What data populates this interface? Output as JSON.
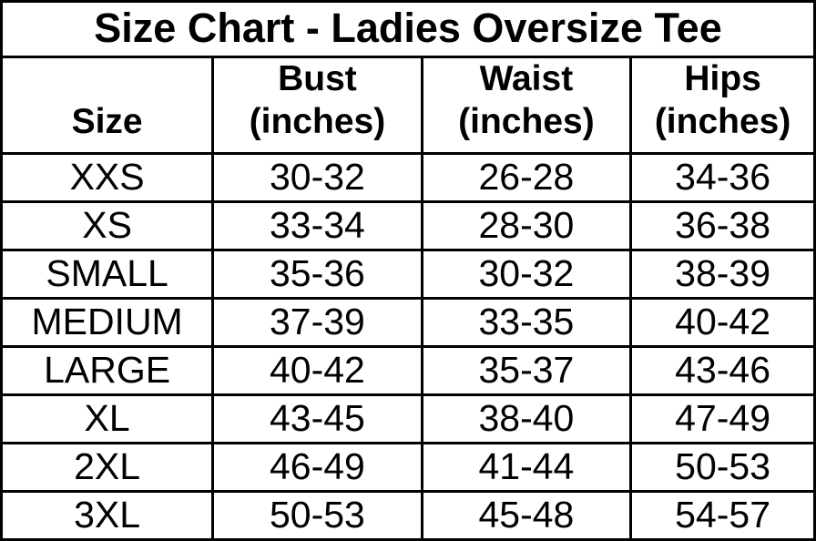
{
  "chart_data": {
    "type": "table",
    "title": "Size Chart - Ladies Oversize Tee",
    "columns": [
      "Size",
      "Bust (inches)",
      "Waist (inches)",
      "Hips (inches)"
    ],
    "rows": [
      [
        "XXS",
        "30-32",
        "26-28",
        "34-36"
      ],
      [
        "XS",
        "33-34",
        "28-30",
        "36-38"
      ],
      [
        "SMALL",
        "35-36",
        "30-32",
        "38-39"
      ],
      [
        "MEDIUM",
        "37-39",
        "33-35",
        "40-42"
      ],
      [
        "LARGE",
        "40-42",
        "35-37",
        "43-46"
      ],
      [
        "XL",
        "43-45",
        "38-40",
        "47-49"
      ],
      [
        "2XL",
        "46-49",
        "41-44",
        "50-53"
      ],
      [
        "3XL",
        "50-53",
        "45-48",
        "54-57"
      ]
    ]
  },
  "header": {
    "cells": [
      {
        "line1": "Size",
        "line2": ""
      },
      {
        "line1": "Bust",
        "line2": "(inches)"
      },
      {
        "line1": "Waist",
        "line2": "(inches)"
      },
      {
        "line1": "Hips",
        "line2": "(inches)"
      }
    ]
  },
  "colors": {
    "border": "#000000",
    "text": "#000000",
    "background": "#ffffff"
  }
}
